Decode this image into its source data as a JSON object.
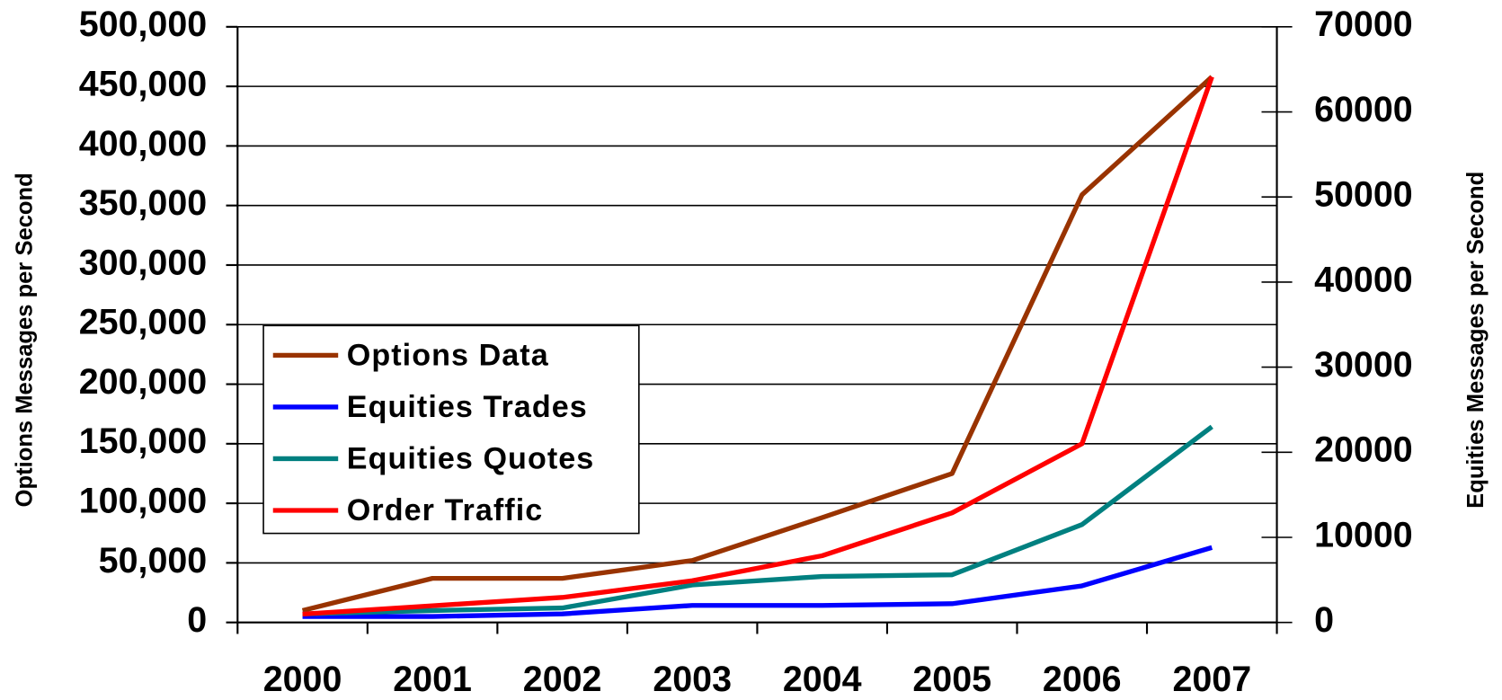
{
  "chart_data": {
    "type": "line",
    "categories": [
      "2000",
      "2001",
      "2002",
      "2003",
      "2004",
      "2005",
      "2006",
      "2007"
    ],
    "y_label": "Options Messages per Second",
    "y2_label": "Equities Messages per Second",
    "ylim": [
      0,
      500000
    ],
    "yticks": [
      0,
      {
        "value": 50000,
        "label": "50,000"
      },
      {
        "value": 100000,
        "label": "100,000"
      },
      {
        "value": 150000,
        "label": "150,000"
      },
      {
        "value": 200000,
        "label": "200,000"
      },
      {
        "value": 250000,
        "label": "250,000"
      },
      {
        "value": 300000,
        "label": "300,000"
      },
      {
        "value": 350000,
        "label": "350,000"
      },
      {
        "value": 400000,
        "label": "400,000"
      },
      {
        "value": 450000,
        "label": "450,000"
      },
      {
        "value": 500000,
        "label": "500,000"
      }
    ],
    "y2lim": [
      0,
      70000
    ],
    "y2ticks": [
      0,
      10000,
      20000,
      30000,
      40000,
      50000,
      60000,
      70000
    ],
    "grid": true,
    "legend": "left",
    "series": [
      {
        "name": "Options Data",
        "color": "#993300",
        "values": [
          10000,
          37000,
          37000,
          52000,
          88000,
          125000,
          359000,
          458000
        ]
      },
      {
        "name": "Equities Trades",
        "color": "#0000ff",
        "axis": "y2",
        "values": [
          700,
          700,
          1000,
          2000,
          2000,
          2200,
          4300,
          8800
        ]
      },
      {
        "name": "Equities Quotes",
        "color": "#008080",
        "axis": "y2",
        "values": [
          1000,
          1400,
          1700,
          4400,
          5400,
          5600,
          11500,
          23000
        ]
      },
      {
        "name": "Order Traffic",
        "color": "#ff0000",
        "values": [
          7000,
          14000,
          21000,
          35000,
          56000,
          92000,
          150000,
          458000
        ]
      }
    ]
  }
}
